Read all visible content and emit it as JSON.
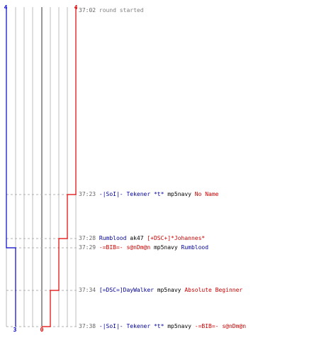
{
  "chart_data": {
    "type": "line",
    "title": "",
    "xlabel": "",
    "ylabel": "",
    "team_colors": {
      "blue": "#0000cc",
      "red": "#e00000"
    },
    "score_labels": {
      "blue_start": "4",
      "red_start": "4",
      "blue_end": "3",
      "red_end": "0"
    },
    "series": [
      {
        "team": "blue",
        "color": "#0000cc",
        "points": [
          {
            "time": "37:02",
            "alive": 4
          },
          {
            "time": "37:29",
            "alive": 3
          },
          {
            "time": "37:38",
            "alive": 3
          }
        ]
      },
      {
        "team": "red",
        "color": "#e00000",
        "points": [
          {
            "time": "37:02",
            "alive": 4
          },
          {
            "time": "37:23",
            "alive": 3
          },
          {
            "time": "37:28",
            "alive": 2
          },
          {
            "time": "37:34",
            "alive": 1
          },
          {
            "time": "37:38",
            "alive": 0
          }
        ]
      }
    ]
  },
  "log": [
    {
      "time": "37:02",
      "parts": [
        {
          "text": "round started",
          "cls": "gray"
        }
      ]
    },
    {
      "time": "37:23",
      "parts": [
        {
          "text": "-|SoI|- Tekener *t*",
          "cls": "blue"
        },
        {
          "text": " mp5navy ",
          "cls": "blk"
        },
        {
          "text": "No Name",
          "cls": "red"
        }
      ]
    },
    {
      "time": "37:28",
      "parts": [
        {
          "text": "Rumblood",
          "cls": "blue"
        },
        {
          "text": " ak47 ",
          "cls": "blk"
        },
        {
          "text": "[+DSC+]*Johannes*",
          "cls": "red"
        }
      ]
    },
    {
      "time": "37:29",
      "parts": [
        {
          "text": "-=BIB=- s@nDm@n",
          "cls": "red"
        },
        {
          "text": " mp5navy ",
          "cls": "blk"
        },
        {
          "text": "Rumblood",
          "cls": "blue"
        }
      ]
    },
    {
      "time": "37:34",
      "parts": [
        {
          "text": "[=DSC=]DayWalker",
          "cls": "blue"
        },
        {
          "text": " mp5navy ",
          "cls": "blk"
        },
        {
          "text": "Absolute Beginner",
          "cls": "red"
        }
      ]
    },
    {
      "time": "37:38",
      "parts": [
        {
          "text": "-|SoI|- Tekener *t*",
          "cls": "blue"
        },
        {
          "text": " mp5navy ",
          "cls": "blk"
        },
        {
          "text": "-=BIB=- s@nDm@n",
          "cls": "red"
        }
      ]
    }
  ]
}
